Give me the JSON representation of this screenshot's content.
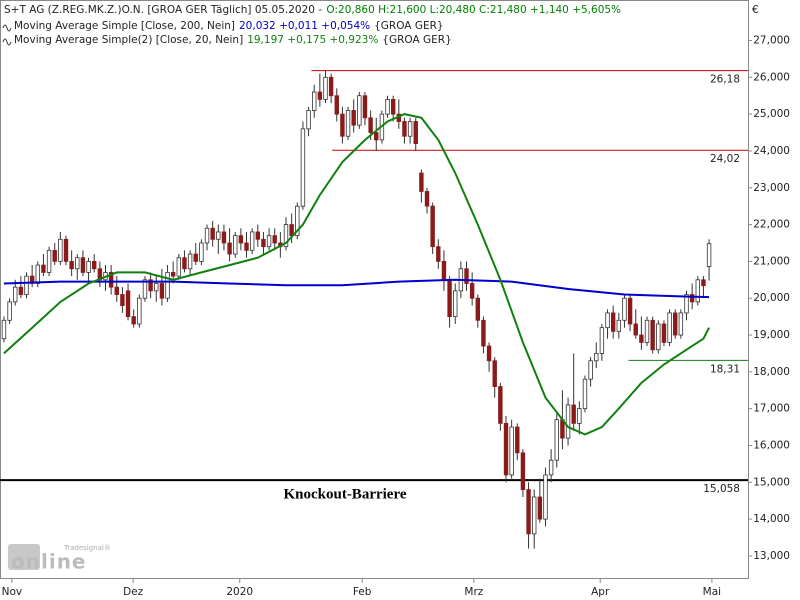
{
  "chart_data": {
    "type": "candlestick",
    "header": {
      "title": "S+T AG (Z.REG.MK.Z.)O.N. [GROA GER  Täglich] 05.05.2020 -",
      "quote": "O:20,860 H:21,600 L:20,480 C:21,480 +1,140 +5,605%",
      "quote_color": "#008000"
    },
    "currency": "€",
    "logo": {
      "small": "Tradesignal®",
      "big": "online"
    },
    "xlim": [
      -0.7,
      131.9
    ],
    "xticks": [
      {
        "value": 1.4,
        "label": "Nov"
      },
      {
        "value": 22.9,
        "label": "Dez"
      },
      {
        "value": 41.8,
        "label": "2020"
      },
      {
        "value": 63.5,
        "label": "Feb"
      },
      {
        "value": 83.3,
        "label": "Mrz"
      },
      {
        "value": 105.7,
        "label": "Apr"
      },
      {
        "value": 125.5,
        "label": "Mai"
      }
    ],
    "ylim": [
      12.4,
      28.1
    ],
    "yticks": [
      {
        "value": 13,
        "label": "13,000"
      },
      {
        "value": 14,
        "label": "14,000"
      },
      {
        "value": 15,
        "label": "15,000"
      },
      {
        "value": 16,
        "label": "16,000"
      },
      {
        "value": 17,
        "label": "17,000"
      },
      {
        "value": 18,
        "label": "18,000"
      },
      {
        "value": 19,
        "label": "19,000"
      },
      {
        "value": 20,
        "label": "20,000"
      },
      {
        "value": 21,
        "label": "21,000"
      },
      {
        "value": 22,
        "label": "22,000"
      },
      {
        "value": 23,
        "label": "23,000"
      },
      {
        "value": 24,
        "label": "24,000"
      },
      {
        "value": 25,
        "label": "25,000"
      },
      {
        "value": 26,
        "label": "26,000"
      },
      {
        "value": 27,
        "label": "27,000"
      }
    ],
    "up_color": "#ffffff",
    "down_color": "#8b1a1a",
    "candles": [
      [
        18.9,
        19.5,
        18.8,
        19.4
      ],
      [
        19.4,
        20.0,
        19.3,
        19.9
      ],
      [
        19.9,
        20.5,
        19.8,
        20.3
      ],
      [
        20.3,
        20.6,
        20.0,
        20.1
      ],
      [
        20.1,
        20.7,
        20.0,
        20.6
      ],
      [
        20.6,
        20.9,
        20.3,
        20.4
      ],
      [
        20.4,
        21.0,
        20.3,
        20.9
      ],
      [
        20.9,
        21.2,
        20.6,
        20.7
      ],
      [
        20.7,
        21.4,
        20.6,
        21.3
      ],
      [
        21.3,
        21.5,
        20.9,
        21.0
      ],
      [
        21.0,
        21.8,
        20.9,
        21.6
      ],
      [
        21.6,
        21.7,
        20.9,
        21.0
      ],
      [
        21.0,
        21.3,
        20.6,
        20.8
      ],
      [
        20.8,
        21.2,
        20.5,
        21.1
      ],
      [
        21.1,
        21.3,
        20.6,
        20.7
      ],
      [
        20.7,
        21.1,
        20.4,
        21.0
      ],
      [
        21.0,
        21.2,
        20.7,
        20.8
      ],
      [
        20.8,
        21.0,
        20.3,
        20.5
      ],
      [
        20.5,
        20.9,
        20.2,
        20.7
      ],
      [
        20.7,
        20.9,
        20.1,
        20.3
      ],
      [
        20.3,
        20.6,
        19.9,
        20.1
      ],
      [
        20.1,
        20.3,
        19.6,
        19.8
      ],
      [
        20.2,
        20.4,
        19.4,
        19.5
      ],
      [
        19.5,
        19.7,
        19.2,
        19.3
      ],
      [
        19.3,
        20.1,
        19.2,
        20.0
      ],
      [
        20.0,
        20.6,
        19.9,
        20.5
      ],
      [
        20.5,
        20.7,
        20.0,
        20.2
      ],
      [
        20.2,
        20.6,
        19.9,
        20.4
      ],
      [
        20.4,
        20.8,
        19.8,
        20.0
      ],
      [
        20.0,
        20.9,
        19.9,
        20.7
      ],
      [
        20.7,
        21.0,
        20.4,
        20.6
      ],
      [
        20.6,
        21.2,
        20.5,
        21.1
      ],
      [
        21.1,
        21.3,
        20.7,
        20.8
      ],
      [
        20.8,
        21.3,
        20.6,
        21.2
      ],
      [
        21.2,
        21.5,
        20.9,
        21.0
      ],
      [
        21.0,
        21.6,
        20.9,
        21.5
      ],
      [
        21.5,
        22.0,
        21.3,
        21.9
      ],
      [
        21.9,
        22.1,
        21.4,
        21.6
      ],
      [
        21.6,
        22.0,
        21.2,
        21.8
      ],
      [
        21.8,
        22.0,
        21.3,
        21.5
      ],
      [
        21.5,
        21.9,
        21.0,
        21.2
      ],
      [
        21.2,
        21.8,
        21.1,
        21.7
      ],
      [
        21.7,
        21.9,
        21.3,
        21.5
      ],
      [
        21.5,
        21.8,
        21.1,
        21.3
      ],
      [
        21.3,
        21.9,
        21.2,
        21.8
      ],
      [
        21.8,
        22.0,
        21.4,
        21.6
      ],
      [
        21.6,
        21.8,
        21.2,
        21.4
      ],
      [
        21.4,
        21.9,
        21.3,
        21.7
      ],
      [
        21.7,
        21.9,
        21.3,
        21.5
      ],
      [
        21.5,
        21.8,
        21.1,
        21.4
      ],
      [
        21.4,
        22.2,
        21.3,
        22.0
      ],
      [
        22.0,
        22.3,
        21.5,
        21.7
      ],
      [
        21.7,
        22.6,
        21.6,
        22.5
      ],
      [
        22.5,
        24.8,
        22.4,
        24.6
      ],
      [
        24.6,
        25.2,
        24.4,
        25.1
      ],
      [
        25.1,
        25.8,
        24.9,
        25.6
      ],
      [
        25.6,
        26.1,
        25.2,
        25.4
      ],
      [
        25.4,
        26.2,
        25.3,
        26.0
      ],
      [
        26.0,
        26.1,
        25.3,
        25.5
      ],
      [
        25.5,
        25.7,
        24.8,
        25.0
      ],
      [
        25.0,
        25.2,
        24.2,
        24.4
      ],
      [
        24.4,
        25.2,
        24.3,
        25.1
      ],
      [
        25.1,
        25.4,
        24.5,
        24.7
      ],
      [
        24.7,
        25.6,
        24.6,
        25.5
      ],
      [
        25.5,
        25.6,
        24.7,
        24.9
      ],
      [
        24.9,
        25.1,
        24.3,
        24.5
      ],
      [
        24.5,
        24.9,
        24.0,
        24.3
      ],
      [
        24.3,
        25.1,
        24.2,
        25.0
      ],
      [
        25.0,
        25.5,
        24.9,
        25.4
      ],
      [
        25.4,
        25.5,
        24.8,
        25.0
      ],
      [
        25.0,
        25.4,
        24.6,
        24.8
      ],
      [
        24.8,
        24.9,
        24.2,
        24.4
      ],
      [
        24.4,
        24.9,
        24.2,
        24.8
      ],
      [
        24.8,
        24.9,
        24.0,
        24.2
      ],
      [
        23.4,
        23.5,
        22.6,
        22.9
      ],
      [
        22.9,
        23.0,
        22.3,
        22.5
      ],
      [
        22.5,
        22.6,
        21.2,
        21.4
      ],
      [
        21.4,
        21.6,
        20.8,
        21.0
      ],
      [
        21.0,
        21.3,
        20.2,
        20.5
      ],
      [
        20.5,
        20.6,
        19.2,
        19.5
      ],
      [
        19.5,
        20.4,
        19.3,
        20.2
      ],
      [
        20.2,
        21.0,
        20.0,
        20.8
      ],
      [
        20.8,
        21.0,
        20.2,
        20.4
      ],
      [
        20.4,
        20.7,
        19.8,
        20.0
      ],
      [
        20.0,
        20.1,
        19.2,
        19.4
      ],
      [
        19.4,
        19.5,
        18.5,
        18.7
      ],
      [
        18.7,
        18.8,
        18.0,
        18.3
      ],
      [
        18.3,
        18.4,
        17.3,
        17.6
      ],
      [
        17.6,
        17.7,
        16.4,
        16.6
      ],
      [
        16.6,
        16.8,
        15.0,
        15.2
      ],
      [
        15.2,
        16.7,
        15.1,
        16.5
      ],
      [
        16.5,
        16.6,
        15.6,
        15.8
      ],
      [
        15.8,
        15.9,
        14.6,
        14.8
      ],
      [
        14.8,
        15.0,
        13.2,
        13.6
      ],
      [
        13.6,
        14.8,
        13.2,
        14.6
      ],
      [
        14.6,
        15.1,
        13.9,
        14.0
      ],
      [
        14.0,
        15.4,
        13.8,
        15.2
      ],
      [
        15.2,
        15.9,
        15.0,
        15.6
      ],
      [
        15.6,
        16.9,
        15.4,
        16.7
      ],
      [
        16.7,
        17.5,
        15.9,
        16.2
      ],
      [
        16.2,
        17.3,
        16.0,
        17.1
      ],
      [
        17.1,
        18.5,
        16.4,
        16.6
      ],
      [
        16.6,
        17.2,
        16.3,
        17.0
      ],
      [
        17.0,
        17.9,
        16.9,
        17.8
      ],
      [
        17.8,
        18.4,
        17.6,
        18.3
      ],
      [
        18.3,
        18.8,
        18.1,
        18.5
      ],
      [
        18.5,
        19.3,
        18.3,
        19.2
      ],
      [
        19.2,
        19.7,
        18.9,
        19.6
      ],
      [
        19.6,
        19.8,
        18.9,
        19.1
      ],
      [
        19.1,
        19.6,
        18.9,
        19.4
      ],
      [
        19.4,
        20.1,
        19.2,
        20.0
      ],
      [
        20.0,
        20.1,
        19.1,
        19.3
      ],
      [
        19.3,
        19.7,
        18.9,
        19.0
      ],
      [
        19.0,
        19.5,
        18.6,
        18.8
      ],
      [
        18.8,
        19.5,
        18.7,
        19.4
      ],
      [
        19.4,
        19.5,
        18.5,
        18.6
      ],
      [
        18.6,
        19.4,
        18.5,
        19.3
      ],
      [
        19.3,
        19.4,
        18.7,
        18.8
      ],
      [
        18.8,
        19.7,
        18.7,
        19.6
      ],
      [
        19.6,
        19.7,
        18.9,
        19.0
      ],
      [
        19.0,
        19.7,
        18.9,
        19.6
      ],
      [
        19.6,
        20.2,
        19.4,
        20.1
      ],
      [
        20.1,
        20.4,
        19.7,
        19.9
      ],
      [
        19.9,
        20.6,
        19.8,
        20.5
      ],
      [
        20.5,
        20.6,
        20.0,
        20.34
      ],
      [
        20.86,
        21.6,
        20.48,
        21.48
      ]
    ],
    "series": [
      {
        "name": "Moving Average Simple [Close, 200, Nein]",
        "quote": "20,032 +0,011 +0,054%",
        "suffix": "{GROA GER}",
        "color": "#0000cc",
        "x": [
          0,
          10,
          20,
          30,
          40,
          50,
          60,
          70,
          80,
          90,
          100,
          110,
          120,
          125
        ],
        "values": [
          20.4,
          20.45,
          20.45,
          20.45,
          20.4,
          20.35,
          20.35,
          20.45,
          20.5,
          20.45,
          20.25,
          20.1,
          20.05,
          20.03
        ]
      },
      {
        "name": "Moving Average Simple(2) [Close, 20, Nein]",
        "quote": "19,197 +0,175 +0,923%",
        "suffix": "{GROA GER}",
        "color": "#108010",
        "x": [
          0,
          5,
          10,
          15,
          20,
          25,
          30,
          35,
          40,
          45,
          50,
          53,
          56,
          60,
          64,
          68,
          71,
          74,
          77,
          80,
          84,
          88,
          92,
          96,
          100,
          103,
          106,
          109,
          113,
          117,
          121,
          124,
          125
        ],
        "values": [
          18.5,
          19.2,
          19.9,
          20.4,
          20.7,
          20.7,
          20.5,
          20.7,
          20.9,
          21.1,
          21.5,
          22.0,
          22.8,
          23.7,
          24.3,
          24.8,
          25.0,
          24.9,
          24.3,
          23.4,
          22.0,
          20.5,
          18.8,
          17.3,
          16.5,
          16.3,
          16.5,
          17.0,
          17.7,
          18.2,
          18.6,
          18.9,
          19.2
        ]
      }
    ],
    "levels": [
      {
        "value": 26.18,
        "label": "26,18",
        "color": "#cc0000",
        "x_start": 54.5
      },
      {
        "value": 24.02,
        "label": "24,02",
        "color": "#cc0000",
        "x_start": 58.2
      },
      {
        "value": 18.31,
        "label": "18,31",
        "color": "#108010",
        "x_start": 110.7
      },
      {
        "value": 15.058,
        "label": "15,058",
        "color": "#000000",
        "text": "Knockout-Barriere"
      }
    ]
  }
}
